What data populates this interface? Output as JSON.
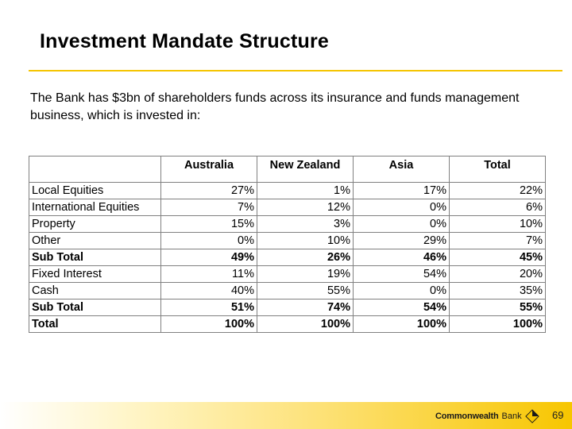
{
  "slide": {
    "title": "Investment Mandate Structure",
    "intro": "The Bank has $3bn of shareholders funds across its insurance and funds management business, which is invested in:",
    "page_number": "69"
  },
  "table": {
    "headers": [
      "",
      "Australia",
      "New Zealand",
      "Asia",
      "Total"
    ],
    "rows": [
      {
        "label": "Local Equities",
        "values": [
          "27%",
          "1%",
          "17%",
          "22%"
        ],
        "bold": false
      },
      {
        "label": "International Equities",
        "values": [
          "7%",
          "12%",
          "0%",
          "6%"
        ],
        "bold": false
      },
      {
        "label": "Property",
        "values": [
          "15%",
          "3%",
          "0%",
          "10%"
        ],
        "bold": false
      },
      {
        "label": "Other",
        "values": [
          "0%",
          "10%",
          "29%",
          "7%"
        ],
        "bold": false
      },
      {
        "label": "Sub Total",
        "values": [
          "49%",
          "26%",
          "46%",
          "45%"
        ],
        "bold": true
      },
      {
        "label": "Fixed Interest",
        "values": [
          "11%",
          "19%",
          "54%",
          "20%"
        ],
        "bold": false
      },
      {
        "label": "Cash",
        "values": [
          "40%",
          "55%",
          "0%",
          "35%"
        ],
        "bold": false
      },
      {
        "label": "Sub Total",
        "values": [
          "51%",
          "74%",
          "54%",
          "55%"
        ],
        "bold": true
      },
      {
        "label": "Total",
        "values": [
          "100%",
          "100%",
          "100%",
          "100%"
        ],
        "bold": true
      }
    ]
  },
  "footer": {
    "logo_text_bold": "Commonwealth",
    "logo_text_regular": "Bank",
    "logo_icon": "commonwealth-bank-diamond-icon",
    "accent_color": "#f7c600"
  }
}
